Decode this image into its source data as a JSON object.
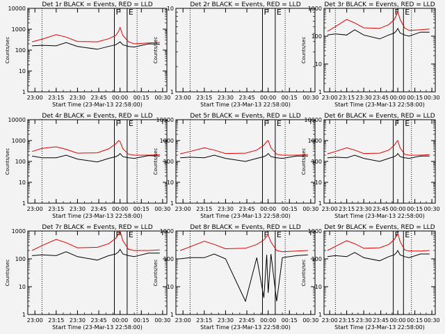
{
  "chart_data": [
    {
      "type": "line",
      "title": "Det 1r BLACK = Events, RED = LLD",
      "xlabel": "Start Time (23-Mar-13 22:58:00)",
      "ylabel": "Counts/sec",
      "yscale": "log",
      "ylim": [
        1,
        10000
      ],
      "x_ticks": [
        "23:00",
        "23:15",
        "23:30",
        "23:45",
        "00:00",
        "00:15",
        "00:30"
      ],
      "y_ticks": [
        "1",
        "10",
        "100",
        "1000",
        "10000"
      ],
      "series": [
        {
          "color": "#e00000",
          "x": [
            "22:58",
            "23:05",
            "23:15",
            "23:22",
            "23:30",
            "23:44",
            "23:52",
            "23:57",
            "23:59",
            "24:00",
            "24:02",
            "24:06",
            "24:10",
            "24:20",
            "24:28"
          ],
          "values": [
            250,
            330,
            550,
            420,
            260,
            250,
            350,
            500,
            800,
            1200,
            500,
            250,
            200,
            220,
            230
          ]
        },
        {
          "color": "#000000",
          "x": [
            "22:58",
            "23:05",
            "23:15",
            "23:22",
            "23:30",
            "23:44",
            "23:52",
            "23:57",
            "23:59",
            "24:00",
            "24:02",
            "24:06",
            "24:10",
            "24:20",
            "24:28"
          ],
          "values": [
            160,
            170,
            160,
            230,
            150,
            110,
            150,
            180,
            220,
            250,
            180,
            150,
            140,
            200,
            190
          ]
        }
      ],
      "markers": [
        {
          "kind": "dotted",
          "x": "23:05"
        },
        {
          "kind": "solid",
          "x": "23:56",
          "label": "F"
        },
        {
          "kind": "solid",
          "x": "24:05",
          "label": "E"
        },
        {
          "kind": "dotted",
          "x": "24:12"
        }
      ]
    },
    {
      "type": "line",
      "title": "Det 2r BLACK = Events, RED = LLD",
      "xlabel": "Start Time (23-Mar-13 22:58:00)",
      "ylabel": "Counts/sec",
      "yscale": "log",
      "ylim": [
        1,
        10
      ],
      "x_ticks": [
        "23:00",
        "23:15",
        "23:30",
        "23:45",
        "00:00",
        "00:15",
        "00:30"
      ],
      "y_ticks": [
        "1",
        "10"
      ],
      "series": [],
      "markers": [
        {
          "kind": "dotted",
          "x": "23:05"
        },
        {
          "kind": "solid",
          "x": "23:56",
          "label": "F"
        },
        {
          "kind": "solid",
          "x": "24:05",
          "label": "E"
        },
        {
          "kind": "dotted",
          "x": "24:12"
        }
      ]
    },
    {
      "type": "line",
      "title": "Det 3r BLACK = Events, RED = LLD",
      "xlabel": "Start Time (23-Mar-13 22:58:00)",
      "ylabel": "Counts/sec",
      "yscale": "log",
      "ylim": [
        1,
        1000
      ],
      "x_ticks": [
        "23:00",
        "23:15",
        "23:30",
        "23:45",
        "00:00",
        "00:15",
        "00:30"
      ],
      "y_ticks": [
        "1",
        "10",
        "100",
        "1000"
      ],
      "series": [
        {
          "color": "#e00000",
          "x": [
            "22:58",
            "23:05",
            "23:15",
            "23:22",
            "23:30",
            "23:44",
            "23:52",
            "23:57",
            "23:59",
            "24:00",
            "24:02",
            "24:06",
            "24:10",
            "24:20",
            "24:28"
          ],
          "values": [
            150,
            220,
            400,
            300,
            200,
            190,
            260,
            400,
            600,
            750,
            400,
            200,
            160,
            170,
            180
          ]
        },
        {
          "color": "#000000",
          "x": [
            "22:58",
            "23:05",
            "23:15",
            "23:22",
            "23:30",
            "23:44",
            "23:52",
            "23:57",
            "23:59",
            "24:00",
            "24:02",
            "24:06",
            "24:10",
            "24:20",
            "24:28"
          ],
          "values": [
            110,
            120,
            110,
            170,
            110,
            80,
            110,
            130,
            160,
            190,
            130,
            110,
            100,
            140,
            140
          ]
        }
      ],
      "markers": [
        {
          "kind": "dotted",
          "x": "23:05"
        },
        {
          "kind": "solid",
          "x": "23:56",
          "label": "F"
        },
        {
          "kind": "solid",
          "x": "24:05",
          "label": "E"
        },
        {
          "kind": "dotted",
          "x": "24:12"
        }
      ]
    },
    {
      "type": "line",
      "title": "Det 4r BLACK = Events, RED = LLD",
      "xlabel": "Start Time (23-Mar-13 22:58:00)",
      "ylabel": "Counts/sec",
      "yscale": "log",
      "ylim": [
        1,
        10000
      ],
      "x_ticks": [
        "23:00",
        "23:15",
        "23:30",
        "23:45",
        "00:00",
        "00:15",
        "00:30"
      ],
      "y_ticks": [
        "1",
        "10",
        "100",
        "1000",
        "10000"
      ],
      "series": [
        {
          "color": "#e00000",
          "x": [
            "22:58",
            "23:05",
            "23:15",
            "23:22",
            "23:30",
            "23:44",
            "23:52",
            "23:57",
            "23:59",
            "24:00",
            "24:02",
            "24:06",
            "24:10",
            "24:20",
            "24:28"
          ],
          "values": [
            300,
            420,
            500,
            380,
            250,
            260,
            400,
            700,
            1000,
            900,
            400,
            220,
            200,
            200,
            210
          ]
        },
        {
          "color": "#000000",
          "x": [
            "22:58",
            "23:05",
            "23:15",
            "23:22",
            "23:30",
            "23:44",
            "23:52",
            "23:57",
            "23:59",
            "24:00",
            "24:02",
            "24:06",
            "24:10",
            "24:20",
            "24:28"
          ],
          "values": [
            180,
            150,
            150,
            200,
            130,
            95,
            140,
            170,
            200,
            240,
            170,
            150,
            140,
            190,
            180
          ]
        }
      ],
      "markers": [
        {
          "kind": "dotted",
          "x": "23:05"
        },
        {
          "kind": "solid",
          "x": "23:56",
          "label": "F"
        },
        {
          "kind": "solid",
          "x": "24:05",
          "label": "E"
        },
        {
          "kind": "dotted",
          "x": "24:12"
        }
      ]
    },
    {
      "type": "line",
      "title": "Det 5r BLACK = Events, RED = LLD",
      "xlabel": "Start Time (23-Mar-13 22:58:00)",
      "ylabel": "Counts/sec",
      "yscale": "log",
      "ylim": [
        1,
        10000
      ],
      "x_ticks": [
        "23:00",
        "23:15",
        "23:30",
        "23:45",
        "00:00",
        "00:15",
        "00:30"
      ],
      "y_ticks": [
        "1",
        "10",
        "100",
        "1000",
        "10000"
      ],
      "series": [
        {
          "color": "#e00000",
          "x": [
            "22:58",
            "23:05",
            "23:15",
            "23:22",
            "23:30",
            "23:44",
            "23:52",
            "23:57",
            "23:59",
            "24:00",
            "24:02",
            "24:06",
            "24:10",
            "24:20",
            "24:28"
          ],
          "values": [
            230,
            300,
            450,
            350,
            240,
            250,
            350,
            600,
            900,
            1000,
            450,
            220,
            200,
            200,
            210
          ]
        },
        {
          "color": "#000000",
          "x": [
            "22:58",
            "23:05",
            "23:15",
            "23:22",
            "23:30",
            "23:44",
            "23:52",
            "23:57",
            "23:59",
            "24:00",
            "24:02",
            "24:06",
            "24:10",
            "24:20",
            "24:28"
          ],
          "values": [
            150,
            160,
            150,
            200,
            140,
            100,
            140,
            170,
            200,
            240,
            170,
            150,
            140,
            180,
            180
          ]
        }
      ],
      "markers": [
        {
          "kind": "dotted",
          "x": "23:05"
        },
        {
          "kind": "solid",
          "x": "23:56",
          "label": "F"
        },
        {
          "kind": "solid",
          "x": "24:05",
          "label": "E"
        },
        {
          "kind": "dotted",
          "x": "24:12"
        }
      ]
    },
    {
      "type": "line",
      "title": "Det 6r BLACK = Events, RED = LLD",
      "xlabel": "Start Time (23-Mar-13 22:58:00)",
      "ylabel": "Counts/sec",
      "yscale": "log",
      "ylim": [
        1,
        10000
      ],
      "x_ticks": [
        "23:00",
        "23:15",
        "23:30",
        "23:45",
        "00:00",
        "00:15",
        "00:30"
      ],
      "y_ticks": [
        "1",
        "10",
        "100",
        "1000",
        "10000"
      ],
      "series": [
        {
          "color": "#e00000",
          "x": [
            "22:58",
            "23:05",
            "23:15",
            "23:22",
            "23:30",
            "23:44",
            "23:52",
            "23:57",
            "23:59",
            "24:00",
            "24:02",
            "24:06",
            "24:10",
            "24:20",
            "24:28"
          ],
          "values": [
            230,
            300,
            450,
            350,
            240,
            250,
            350,
            600,
            900,
            1000,
            450,
            220,
            200,
            200,
            210
          ]
        },
        {
          "color": "#000000",
          "x": [
            "22:58",
            "23:05",
            "23:15",
            "23:22",
            "23:30",
            "23:44",
            "23:52",
            "23:57",
            "23:59",
            "24:00",
            "24:02",
            "24:06",
            "24:10",
            "24:20",
            "24:28"
          ],
          "values": [
            150,
            160,
            150,
            200,
            140,
            100,
            140,
            170,
            200,
            240,
            170,
            150,
            140,
            180,
            180
          ]
        }
      ],
      "markers": [
        {
          "kind": "dotted",
          "x": "23:05"
        },
        {
          "kind": "solid",
          "x": "23:56",
          "label": "F"
        },
        {
          "kind": "solid",
          "x": "24:05",
          "label": "E"
        },
        {
          "kind": "dotted",
          "x": "24:12"
        }
      ]
    },
    {
      "type": "line",
      "title": "Det 7r BLACK = Events, RED = LLD",
      "xlabel": "Start Time (23-Mar-13 22:58:00)",
      "ylabel": "Counts/sec",
      "yscale": "log",
      "ylim": [
        1,
        1000
      ],
      "x_ticks": [
        "23:00",
        "23:15",
        "23:30",
        "23:45",
        "00:00",
        "00:15",
        "00:30"
      ],
      "y_ticks": [
        "1",
        "10",
        "100",
        "1000"
      ],
      "series": [
        {
          "color": "#e00000",
          "x": [
            "22:58",
            "23:05",
            "23:15",
            "23:22",
            "23:30",
            "23:44",
            "23:52",
            "23:57",
            "23:59",
            "24:00",
            "24:02",
            "24:06",
            "24:10",
            "24:20",
            "24:28"
          ],
          "values": [
            200,
            300,
            500,
            380,
            250,
            260,
            350,
            550,
            800,
            1000,
            450,
            220,
            200,
            200,
            210
          ]
        },
        {
          "color": "#000000",
          "x": [
            "22:58",
            "23:05",
            "23:15",
            "23:22",
            "23:30",
            "23:44",
            "23:52",
            "23:57",
            "23:59",
            "24:00",
            "24:02",
            "24:06",
            "24:10",
            "24:20",
            "24:28"
          ],
          "values": [
            130,
            140,
            130,
            180,
            120,
            90,
            130,
            150,
            180,
            220,
            150,
            130,
            120,
            160,
            160
          ]
        }
      ],
      "markers": [
        {
          "kind": "dotted",
          "x": "23:05"
        },
        {
          "kind": "solid",
          "x": "23:56",
          "label": "F"
        },
        {
          "kind": "solid",
          "x": "24:05",
          "label": "E"
        },
        {
          "kind": "dotted",
          "x": "24:12"
        }
      ]
    },
    {
      "type": "line",
      "title": "Det 8r BLACK = Events, RED = LLD",
      "xlabel": "Start Time (23-Mar-13 22:58:00)",
      "ylabel": "Counts/sec",
      "yscale": "log",
      "ylim": [
        1,
        1000
      ],
      "x_ticks": [
        "23:00",
        "23:15",
        "23:30",
        "23:45",
        "00:00",
        "00:15",
        "00:30"
      ],
      "y_ticks": [
        "1",
        "10",
        "100",
        "1000"
      ],
      "series": [
        {
          "color": "#e00000",
          "x": [
            "22:58",
            "23:05",
            "23:15",
            "23:22",
            "23:30",
            "23:44",
            "23:52",
            "23:57",
            "23:59",
            "24:00",
            "24:02",
            "24:06",
            "24:10",
            "24:20",
            "24:28"
          ],
          "values": [
            200,
            270,
            430,
            330,
            230,
            240,
            330,
            480,
            650,
            700,
            400,
            200,
            180,
            190,
            200
          ]
        },
        {
          "color": "#000000",
          "x": [
            "22:58",
            "23:05",
            "23:15",
            "23:22",
            "23:30",
            "23:44",
            "23:52",
            "23:57",
            "23:59",
            "24:00",
            "24:02",
            "24:06",
            "24:10",
            "24:20",
            "24:28"
          ],
          "values": [
            100,
            110,
            110,
            150,
            100,
            3,
            110,
            4,
            140,
            6,
            150,
            3,
            110,
            130,
            140
          ]
        }
      ],
      "markers": [
        {
          "kind": "dotted",
          "x": "23:05"
        },
        {
          "kind": "solid",
          "x": "23:56",
          "label": "F"
        },
        {
          "kind": "solid",
          "x": "24:05",
          "label": "E"
        },
        {
          "kind": "dotted",
          "x": "24:12"
        }
      ]
    },
    {
      "type": "line",
      "title": "Det 9r BLACK = Events, RED = LLD",
      "xlabel": "Start Time (23-Mar-13 22:58:00)",
      "ylabel": "Counts/sec",
      "yscale": "log",
      "ylim": [
        1,
        1000
      ],
      "x_ticks": [
        "23:00",
        "23:15",
        "23:30",
        "23:45",
        "00:00",
        "00:15",
        "00:30"
      ],
      "y_ticks": [
        "1",
        "10",
        "100",
        "1000"
      ],
      "series": [
        {
          "color": "#e00000",
          "x": [
            "22:58",
            "23:05",
            "23:15",
            "23:22",
            "23:30",
            "23:44",
            "23:52",
            "23:57",
            "23:59",
            "24:00",
            "24:02",
            "24:06",
            "24:10",
            "24:20",
            "24:28"
          ],
          "values": [
            200,
            280,
            450,
            350,
            240,
            250,
            330,
            500,
            700,
            800,
            420,
            210,
            190,
            190,
            200
          ]
        },
        {
          "color": "#000000",
          "x": [
            "22:58",
            "23:05",
            "23:15",
            "23:22",
            "23:30",
            "23:44",
            "23:52",
            "23:57",
            "23:59",
            "24:00",
            "24:02",
            "24:06",
            "24:10",
            "24:20",
            "24:28"
          ],
          "values": [
            120,
            130,
            120,
            170,
            110,
            85,
            120,
            140,
            170,
            200,
            140,
            120,
            110,
            150,
            150
          ]
        }
      ],
      "markers": [
        {
          "kind": "dotted",
          "x": "23:05"
        },
        {
          "kind": "solid",
          "x": "23:56",
          "label": "F"
        },
        {
          "kind": "solid",
          "x": "24:05",
          "label": "E"
        },
        {
          "kind": "dotted",
          "x": "24:12"
        }
      ]
    }
  ]
}
